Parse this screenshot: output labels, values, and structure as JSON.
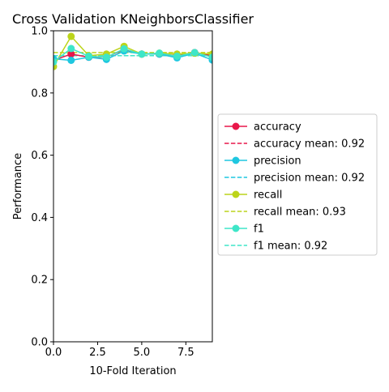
{
  "chart_data": {
    "type": "line",
    "title": "Cross Validation KNeighborsClassifier",
    "xlabel": "10-Fold Iteration",
    "ylabel": "Performance",
    "xlim": [
      0,
      9
    ],
    "ylim": [
      0.0,
      1.0
    ],
    "xticks": [
      "0.0",
      "2.5",
      "5.0",
      "7.5"
    ],
    "xtick_values": [
      0,
      2.5,
      5,
      7.5
    ],
    "yticks": [
      "0.0",
      "0.2",
      "0.4",
      "0.6",
      "0.8",
      "1.0"
    ],
    "ytick_values": [
      0,
      0.2,
      0.4,
      0.6,
      0.8,
      1.0
    ],
    "grid": false,
    "legend_position": "right, outside plot",
    "x": [
      0,
      1,
      2,
      3,
      4,
      5,
      6,
      7,
      8,
      9
    ],
    "series": [
      {
        "name": "accuracy",
        "color": "#e8174a",
        "values": [
          0.905,
          0.925,
          0.915,
          0.915,
          0.94,
          0.925,
          0.925,
          0.92,
          0.93,
          0.92
        ],
        "mean": 0.92,
        "mean_label": "accuracy mean: 0.92"
      },
      {
        "name": "precision",
        "color": "#1fc7e0",
        "values": [
          0.91,
          0.905,
          0.915,
          0.908,
          0.935,
          0.925,
          0.925,
          0.913,
          0.928,
          0.906
        ],
        "mean": 0.92,
        "mean_label": "precision mean: 0.92"
      },
      {
        "name": "recall",
        "color": "#bcd41a",
        "values": [
          0.885,
          0.982,
          0.92,
          0.925,
          0.95,
          0.925,
          0.928,
          0.925,
          0.928,
          0.925
        ],
        "mean": 0.93,
        "mean_label": "recall mean: 0.93"
      },
      {
        "name": "f1",
        "color": "#3ee6c8",
        "values": [
          0.9,
          0.943,
          0.918,
          0.915,
          0.942,
          0.925,
          0.928,
          0.918,
          0.93,
          0.915
        ],
        "mean": 0.92,
        "mean_label": "f1 mean: 0.92"
      }
    ]
  }
}
